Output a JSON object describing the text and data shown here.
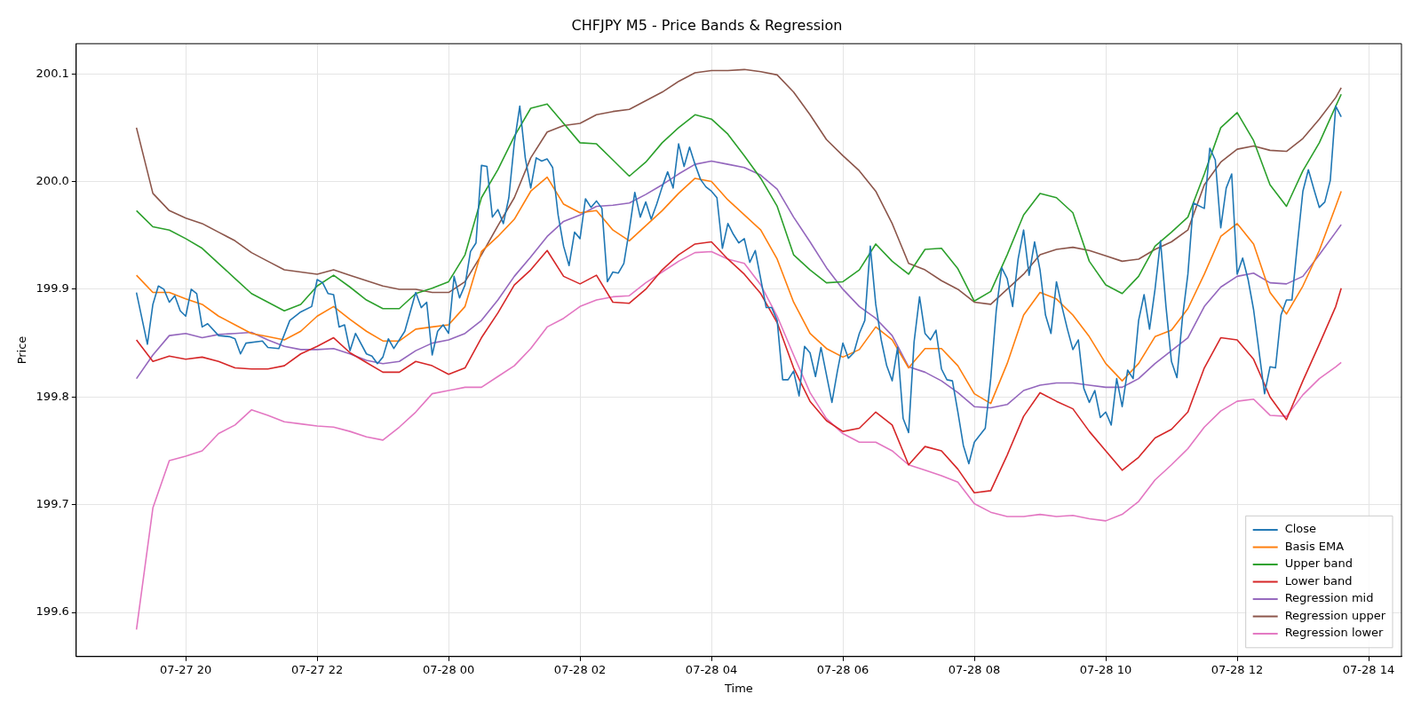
{
  "chart_data": {
    "type": "line",
    "title": "CHFJPY M5 - Price Bands & Regression",
    "xlabel": "Time",
    "ylabel": "Price",
    "x": [
      "--07-27T19:15",
      "--07-27T19:30",
      "--07-27T19:45",
      "--07-27T20:00",
      "--07-27T20:15",
      "--07-27T20:30",
      "--07-27T20:45",
      "--07-27T21:00",
      "--07-27T21:15",
      "--07-27T21:30",
      "--07-27T21:45",
      "--07-27T22:00",
      "--07-27T22:15",
      "--07-27T22:30",
      "--07-27T22:45",
      "--07-27T23:00",
      "--07-27T23:15",
      "--07-27T23:30",
      "--07-27T23:45",
      "--07-28T00:00",
      "--07-28T00:15",
      "--07-28T00:30",
      "--07-28T00:45",
      "--07-28T01:00",
      "--07-28T01:15",
      "--07-28T01:30",
      "--07-28T01:45",
      "--07-28T02:00",
      "--07-28T02:15",
      "--07-28T02:30",
      "--07-28T02:45",
      "--07-28T03:00",
      "--07-28T03:15",
      "--07-28T03:30",
      "--07-28T03:45",
      "--07-28T04:00",
      "--07-28T04:15",
      "--07-28T04:30",
      "--07-28T04:45",
      "--07-28T05:00",
      "--07-28T05:15",
      "--07-28T05:30",
      "--07-28T05:45",
      "--07-28T06:00",
      "--07-28T06:15",
      "--07-28T06:30",
      "--07-28T06:45",
      "--07-28T07:00",
      "--07-28T07:15",
      "--07-28T07:30",
      "--07-28T07:45",
      "--07-28T08:00",
      "--07-28T08:15",
      "--07-28T08:30",
      "--07-28T08:45",
      "--07-28T09:00",
      "--07-28T09:15",
      "--07-28T09:30",
      "--07-28T09:45",
      "--07-28T10:00",
      "--07-28T10:15",
      "--07-28T10:30",
      "--07-28T10:45",
      "--07-28T11:00",
      "--07-28T11:15",
      "--07-28T11:30",
      "--07-28T11:45",
      "--07-28T12:00",
      "--07-28T12:15",
      "--07-28T12:30",
      "--07-28T12:45",
      "--07-28T13:00",
      "--07-28T13:15",
      "--07-28T13:30",
      "--07-28T13:35"
    ],
    "series": [
      {
        "name": "Close",
        "color": "#1f77b4",
        "x": [
          "--07-27T19:15",
          "--07-27T19:25",
          "--07-27T19:30",
          "--07-27T19:35",
          "--07-27T19:40",
          "--07-27T19:45",
          "--07-27T19:50",
          "--07-27T19:55",
          "--07-27T20:00",
          "--07-27T20:05",
          "--07-27T20:10",
          "--07-27T20:15",
          "--07-27T20:20",
          "--07-27T20:30",
          "--07-27T20:40",
          "--07-27T20:45",
          "--07-27T20:50",
          "--07-27T20:55",
          "--07-27T21:10",
          "--07-27T21:15",
          "--07-27T21:25",
          "--07-27T21:35",
          "--07-27T21:45",
          "--07-27T21:55",
          "--07-27T22:00",
          "--07-27T22:05",
          "--07-27T22:10",
          "--07-27T22:15",
          "--07-27T22:20",
          "--07-27T22:25",
          "--07-27T22:30",
          "--07-27T22:35",
          "--07-27T22:45",
          "--07-27T22:50",
          "--07-27T22:55",
          "--07-27T23:00",
          "--07-27T23:05",
          "--07-27T23:10",
          "--07-27T23:20",
          "--07-27T23:30",
          "--07-27T23:35",
          "--07-27T23:40",
          "--07-27T23:45",
          "--07-27T23:50",
          "--07-27T23:55",
          "--07-28T00:00",
          "--07-28T00:05",
          "--07-28T00:10",
          "--07-28T00:15",
          "--07-28T00:20",
          "--07-28T00:25",
          "--07-28T00:30",
          "--07-28T00:35",
          "--07-28T00:40",
          "--07-28T00:45",
          "--07-28T00:50",
          "--07-28T00:55",
          "--07-28T01:00",
          "--07-28T01:05",
          "--07-28T01:10",
          "--07-28T01:15",
          "--07-28T01:20",
          "--07-28T01:25",
          "--07-28T01:30",
          "--07-28T01:35",
          "--07-28T01:40",
          "--07-28T01:45",
          "--07-28T01:50",
          "--07-28T01:55",
          "--07-28T02:00",
          "--07-28T02:05",
          "--07-28T02:10",
          "--07-28T02:15",
          "--07-28T02:20",
          "--07-28T02:25",
          "--07-28T02:30",
          "--07-28T02:35",
          "--07-28T02:40",
          "--07-28T02:45",
          "--07-28T02:50",
          "--07-28T02:55",
          "--07-28T03:00",
          "--07-28T03:05",
          "--07-28T03:10",
          "--07-28T03:15",
          "--07-28T03:20",
          "--07-28T03:25",
          "--07-28T03:30",
          "--07-28T03:35",
          "--07-28T03:40",
          "--07-28T03:45",
          "--07-28T03:50",
          "--07-28T03:55",
          "--07-28T04:00",
          "--07-28T04:05",
          "--07-28T04:10",
          "--07-28T04:15",
          "--07-28T04:20",
          "--07-28T04:25",
          "--07-28T04:30",
          "--07-28T04:35",
          "--07-28T04:40",
          "--07-28T04:50",
          "--07-28T04:55",
          "--07-28T05:00",
          "--07-28T05:05",
          "--07-28T05:10",
          "--07-28T05:15",
          "--07-28T05:20",
          "--07-28T05:25",
          "--07-28T05:30",
          "--07-28T05:35",
          "--07-28T05:40",
          "--07-28T05:50",
          "--07-28T05:55",
          "--07-28T06:00",
          "--07-28T06:05",
          "--07-28T06:10",
          "--07-28T06:15",
          "--07-28T06:20",
          "--07-28T06:25",
          "--07-28T06:30",
          "--07-28T06:35",
          "--07-28T06:40",
          "--07-28T06:45",
          "--07-28T06:50",
          "--07-28T06:55",
          "--07-28T07:00",
          "--07-28T07:05",
          "--07-28T07:10",
          "--07-28T07:15",
          "--07-28T07:20",
          "--07-28T07:25",
          "--07-28T07:30",
          "--07-28T07:35",
          "--07-28T07:40",
          "--07-28T07:45",
          "--07-28T07:50",
          "--07-28T07:55",
          "--07-28T08:00",
          "--07-28T08:10",
          "--07-28T08:15",
          "--07-28T08:20",
          "--07-28T08:25",
          "--07-28T08:30",
          "--07-28T08:35",
          "--07-28T08:40",
          "--07-28T08:45",
          "--07-28T08:50",
          "--07-28T08:55",
          "--07-28T09:00",
          "--07-28T09:05",
          "--07-28T09:10",
          "--07-28T09:15",
          "--07-28T09:20",
          "--07-28T09:25",
          "--07-28T09:30",
          "--07-28T09:35",
          "--07-28T09:40",
          "--07-28T09:45",
          "--07-28T09:50",
          "--07-28T09:55",
          "--07-28T10:00",
          "--07-28T10:05",
          "--07-28T10:10",
          "--07-28T10:15",
          "--07-28T10:20",
          "--07-28T10:25",
          "--07-28T10:30",
          "--07-28T10:35",
          "--07-28T10:40",
          "--07-28T10:45",
          "--07-28T10:50",
          "--07-28T10:55",
          "--07-28T11:00",
          "--07-28T11:05",
          "--07-28T11:10",
          "--07-28T11:15",
          "--07-28T11:20",
          "--07-28T11:30",
          "--07-28T11:35",
          "--07-28T11:40",
          "--07-28T11:45",
          "--07-28T11:50",
          "--07-28T11:55",
          "--07-28T12:00",
          "--07-28T12:05",
          "--07-28T12:10",
          "--07-28T12:15",
          "--07-28T12:25",
          "--07-28T12:30",
          "--07-28T12:35",
          "--07-28T12:40",
          "--07-28T12:45",
          "--07-28T12:50",
          "--07-28T12:55",
          "--07-28T13:00",
          "--07-28T13:05",
          "--07-28T13:10",
          "--07-28T13:15",
          "--07-28T13:20",
          "--07-28T13:25",
          "--07-28T13:30",
          "--07-28T13:35"
        ],
        "values": [
          199.897,
          199.849,
          199.886,
          199.903,
          199.9,
          199.888,
          199.894,
          199.88,
          199.875,
          199.9,
          199.896,
          199.865,
          199.868,
          199.857,
          199.856,
          199.854,
          199.84,
          199.85,
          199.852,
          199.846,
          199.845,
          199.871,
          199.879,
          199.884,
          199.909,
          199.906,
          199.896,
          199.895,
          199.865,
          199.867,
          199.843,
          199.859,
          199.84,
          199.838,
          199.831,
          199.837,
          199.854,
          199.845,
          199.861,
          199.897,
          199.883,
          199.888,
          199.839,
          199.861,
          199.867,
          199.859,
          199.912,
          199.892,
          199.904,
          199.935,
          199.943,
          200.015,
          200.014,
          199.967,
          199.974,
          199.961,
          199.985,
          200.036,
          200.07,
          200.022,
          199.994,
          200.022,
          200.019,
          200.021,
          200.013,
          199.969,
          199.94,
          199.922,
          199.953,
          199.947,
          199.984,
          199.976,
          199.982,
          199.975,
          199.907,
          199.916,
          199.915,
          199.924,
          199.955,
          199.99,
          199.967,
          199.981,
          199.965,
          199.979,
          199.995,
          200.009,
          199.994,
          200.035,
          200.014,
          200.032,
          200.016,
          200.002,
          199.995,
          199.991,
          199.985,
          199.938,
          199.961,
          199.951,
          199.943,
          199.947,
          199.925,
          199.936,
          199.883,
          199.883,
          199.871,
          199.816,
          199.816,
          199.824,
          199.801,
          199.847,
          199.841,
          199.819,
          199.846,
          199.795,
          199.824,
          199.85,
          199.836,
          199.841,
          199.859,
          199.871,
          199.94,
          199.886,
          199.853,
          199.829,
          199.815,
          199.846,
          199.78,
          199.767,
          199.851,
          199.893,
          199.859,
          199.853,
          199.862,
          199.826,
          199.816,
          199.815,
          199.786,
          199.755,
          199.738,
          199.758,
          199.771,
          199.817,
          199.88,
          199.92,
          199.91,
          199.884,
          199.928,
          199.955,
          199.913,
          199.944,
          199.918,
          199.876,
          199.859,
          199.907,
          199.884,
          199.863,
          199.844,
          199.853,
          199.808,
          199.795,
          199.806,
          199.781,
          199.786,
          199.774,
          199.817,
          199.791,
          199.825,
          199.817,
          199.871,
          199.895,
          199.863,
          199.9,
          199.945,
          199.884,
          199.833,
          199.818,
          199.873,
          199.914,
          199.98,
          199.975,
          200.031,
          200.02,
          199.957,
          199.994,
          200.007,
          199.914,
          199.929,
          199.909,
          199.881,
          199.803,
          199.828,
          199.827,
          199.876,
          199.89,
          199.89,
          199.942,
          199.991,
          200.011,
          199.993,
          199.976,
          199.981,
          200.001,
          200.07,
          200.06
        ]
      },
      {
        "name": "Basis EMA",
        "color": "#ff7f0e",
        "values": [
          199.913,
          199.897,
          199.897,
          199.891,
          199.886,
          199.875,
          199.867,
          199.859,
          199.856,
          199.853,
          199.861,
          199.875,
          199.884,
          199.872,
          199.861,
          199.852,
          199.852,
          199.863,
          199.865,
          199.867,
          199.884,
          199.935,
          199.949,
          199.965,
          199.991,
          200.004,
          199.979,
          199.971,
          199.973,
          199.955,
          199.945,
          199.959,
          199.973,
          199.989,
          200.003,
          200.0,
          199.983,
          199.969,
          199.955,
          199.928,
          199.888,
          199.859,
          199.845,
          199.837,
          199.844,
          199.865,
          199.853,
          199.827,
          199.845,
          199.845,
          199.829,
          199.803,
          199.794,
          199.831,
          199.876,
          199.897,
          199.891,
          199.876,
          199.856,
          199.831,
          199.815,
          199.831,
          199.856,
          199.862,
          199.882,
          199.914,
          199.949,
          199.961,
          199.942,
          199.897,
          199.877,
          199.903,
          199.936,
          199.977,
          199.991
        ]
      },
      {
        "name": "Upper band",
        "color": "#2ca02c",
        "values": [
          199.973,
          199.958,
          199.955,
          199.947,
          199.938,
          199.924,
          199.91,
          199.896,
          199.888,
          199.88,
          199.886,
          199.903,
          199.913,
          199.902,
          199.89,
          199.882,
          199.882,
          199.896,
          199.901,
          199.907,
          199.932,
          199.985,
          200.011,
          200.042,
          200.068,
          200.072,
          200.054,
          200.036,
          200.035,
          200.02,
          200.005,
          200.018,
          200.036,
          200.05,
          200.062,
          200.058,
          200.044,
          200.024,
          200.003,
          199.977,
          199.932,
          199.918,
          199.906,
          199.907,
          199.918,
          199.942,
          199.926,
          199.914,
          199.937,
          199.938,
          199.919,
          199.889,
          199.898,
          199.932,
          199.969,
          199.989,
          199.985,
          199.971,
          199.926,
          199.904,
          199.896,
          199.912,
          199.94,
          199.953,
          199.967,
          200.007,
          200.05,
          200.064,
          200.038,
          199.997,
          199.977,
          200.01,
          200.036,
          200.07,
          200.081
        ]
      },
      {
        "name": "Lower band",
        "color": "#d62728",
        "values": [
          199.853,
          199.833,
          199.838,
          199.835,
          199.837,
          199.833,
          199.827,
          199.826,
          199.826,
          199.829,
          199.84,
          199.847,
          199.855,
          199.841,
          199.832,
          199.823,
          199.823,
          199.833,
          199.829,
          199.821,
          199.827,
          199.855,
          199.878,
          199.904,
          199.918,
          199.936,
          199.912,
          199.905,
          199.913,
          199.888,
          199.887,
          199.9,
          199.918,
          199.932,
          199.942,
          199.944,
          199.928,
          199.914,
          199.896,
          199.869,
          199.827,
          199.796,
          199.778,
          199.768,
          199.771,
          199.786,
          199.774,
          199.737,
          199.754,
          199.75,
          199.733,
          199.711,
          199.713,
          199.746,
          199.782,
          199.804,
          199.796,
          199.789,
          199.768,
          199.75,
          199.732,
          199.744,
          199.762,
          199.77,
          199.786,
          199.827,
          199.855,
          199.853,
          199.835,
          199.8,
          199.779,
          199.815,
          199.849,
          199.884,
          199.901
        ]
      },
      {
        "name": "Regression mid",
        "color": "#9467bd",
        "values": [
          199.817,
          199.839,
          199.857,
          199.859,
          199.855,
          199.858,
          199.859,
          199.86,
          199.853,
          199.847,
          199.844,
          199.844,
          199.845,
          199.84,
          199.834,
          199.831,
          199.833,
          199.843,
          199.85,
          199.853,
          199.859,
          199.871,
          199.89,
          199.912,
          199.93,
          199.949,
          199.963,
          199.969,
          199.977,
          199.978,
          199.98,
          199.988,
          199.997,
          200.007,
          200.016,
          200.019,
          200.016,
          200.013,
          200.006,
          199.993,
          199.967,
          199.944,
          199.92,
          199.9,
          199.884,
          199.873,
          199.857,
          199.828,
          199.823,
          199.815,
          199.804,
          199.791,
          199.79,
          199.793,
          199.806,
          199.811,
          199.813,
          199.813,
          199.811,
          199.809,
          199.809,
          199.817,
          199.831,
          199.843,
          199.855,
          199.884,
          199.902,
          199.912,
          199.915,
          199.906,
          199.905,
          199.912,
          199.932,
          199.953,
          199.96
        ]
      },
      {
        "name": "Regression upper",
        "color": "#8c564b",
        "values": [
          200.05,
          199.989,
          199.973,
          199.966,
          199.961,
          199.953,
          199.945,
          199.934,
          199.926,
          199.918,
          199.916,
          199.914,
          199.918,
          199.913,
          199.908,
          199.903,
          199.9,
          199.9,
          199.897,
          199.897,
          199.907,
          199.932,
          199.959,
          199.985,
          200.022,
          200.046,
          200.052,
          200.054,
          200.062,
          200.065,
          200.067,
          200.075,
          200.083,
          200.093,
          200.101,
          200.103,
          200.103,
          200.104,
          200.102,
          200.099,
          200.083,
          200.062,
          200.039,
          200.024,
          200.01,
          199.991,
          199.961,
          199.924,
          199.918,
          199.908,
          199.9,
          199.888,
          199.886,
          199.9,
          199.914,
          199.932,
          199.937,
          199.939,
          199.936,
          199.931,
          199.926,
          199.928,
          199.937,
          199.944,
          199.955,
          199.997,
          200.018,
          200.03,
          200.033,
          200.029,
          200.028,
          200.04,
          200.058,
          200.078,
          200.087
        ]
      },
      {
        "name": "Regression lower",
        "color": "#e377c2",
        "values": [
          199.584,
          199.697,
          199.741,
          199.745,
          199.75,
          199.766,
          199.774,
          199.788,
          199.783,
          199.777,
          199.775,
          199.773,
          199.772,
          199.768,
          199.763,
          199.76,
          199.772,
          199.786,
          199.803,
          199.806,
          199.809,
          199.809,
          199.819,
          199.829,
          199.845,
          199.865,
          199.873,
          199.884,
          199.89,
          199.893,
          199.894,
          199.906,
          199.916,
          199.926,
          199.934,
          199.935,
          199.928,
          199.924,
          199.904,
          199.875,
          199.839,
          199.804,
          199.78,
          199.766,
          199.758,
          199.758,
          199.75,
          199.737,
          199.732,
          199.727,
          199.721,
          199.701,
          199.693,
          199.689,
          199.689,
          199.691,
          199.689,
          199.69,
          199.687,
          199.685,
          199.691,
          199.703,
          199.723,
          199.737,
          199.752,
          199.772,
          199.787,
          199.796,
          199.798,
          199.783,
          199.782,
          199.802,
          199.817,
          199.828,
          199.832
        ]
      }
    ],
    "xlim": [
      "--07-27T18:20",
      "--07-28T14:30"
    ],
    "xticks": [
      {
        "value": "--07-27T20:00",
        "label": "07-27 20"
      },
      {
        "value": "--07-27T22:00",
        "label": "07-27 22"
      },
      {
        "value": "--07-28T00:00",
        "label": "07-28 00"
      },
      {
        "value": "--07-28T02:00",
        "label": "07-28 02"
      },
      {
        "value": "--07-28T04:00",
        "label": "07-28 04"
      },
      {
        "value": "--07-28T06:00",
        "label": "07-28 06"
      },
      {
        "value": "--07-28T08:00",
        "label": "07-28 08"
      },
      {
        "value": "--07-28T10:00",
        "label": "07-28 10"
      },
      {
        "value": "--07-28T12:00",
        "label": "07-28 12"
      },
      {
        "value": "--07-28T14:00",
        "label": "07-28 14"
      }
    ],
    "ylim": [
      199.559,
      200.128
    ],
    "yticks": [
      {
        "value": 199.6,
        "label": "199.6"
      },
      {
        "value": 199.7,
        "label": "199.7"
      },
      {
        "value": 199.8,
        "label": "199.8"
      },
      {
        "value": 199.9,
        "label": "199.9"
      },
      {
        "value": 200.0,
        "label": "200.0"
      },
      {
        "value": 200.1,
        "label": "200.1"
      }
    ],
    "grid": true,
    "legend": "bottom right"
  }
}
